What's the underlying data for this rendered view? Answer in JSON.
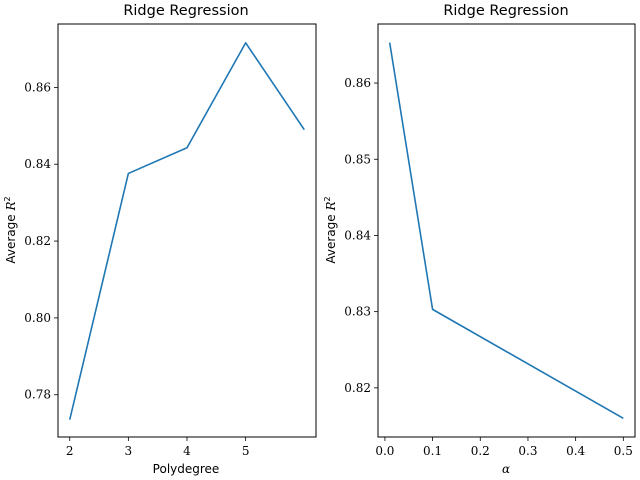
{
  "chart_data": [
    {
      "type": "line",
      "title": "Ridge Regression",
      "xlabel": "Polydegree",
      "ylabel_prefix": "Average ",
      "ylabel_symbol": "R",
      "ylabel_sup": "2",
      "x": [
        2,
        3,
        4,
        5,
        6
      ],
      "series": [
        {
          "values": [
            0.7735,
            0.8376,
            0.8443,
            0.8716,
            0.849
          ]
        }
      ],
      "xlim": [
        1.8,
        6.2
      ],
      "ylim": [
        0.769,
        0.8765
      ],
      "xticks": [
        {
          "value": 2,
          "label": "2"
        },
        {
          "value": 3,
          "label": "3"
        },
        {
          "value": 4,
          "label": "4"
        },
        {
          "value": 5,
          "label": "5"
        }
      ],
      "yticks": [
        {
          "value": 0.78,
          "label": "0.78"
        },
        {
          "value": 0.8,
          "label": "0.80"
        },
        {
          "value": 0.82,
          "label": "0.82"
        },
        {
          "value": 0.84,
          "label": "0.84"
        },
        {
          "value": 0.86,
          "label": "0.86"
        }
      ],
      "grid": false,
      "legend": "none"
    },
    {
      "type": "line",
      "title": "Ridge Regression",
      "xlabel": "α",
      "ylabel_prefix": "Average ",
      "ylabel_symbol": "R",
      "ylabel_sup": "2",
      "x": [
        0.01,
        0.1,
        0.5
      ],
      "series": [
        {
          "values": [
            0.8653,
            0.8303,
            0.816
          ]
        }
      ],
      "xlim": [
        -0.0145,
        0.5245
      ],
      "ylim": [
        0.81355,
        0.86775
      ],
      "xticks": [
        {
          "value": 0.0,
          "label": "0.0"
        },
        {
          "value": 0.1,
          "label": "0.1"
        },
        {
          "value": 0.2,
          "label": "0.2"
        },
        {
          "value": 0.3,
          "label": "0.3"
        },
        {
          "value": 0.4,
          "label": "0.4"
        },
        {
          "value": 0.5,
          "label": "0.5"
        }
      ],
      "yticks": [
        {
          "value": 0.82,
          "label": "0.82"
        },
        {
          "value": 0.83,
          "label": "0.83"
        },
        {
          "value": 0.84,
          "label": "0.84"
        },
        {
          "value": 0.85,
          "label": "0.85"
        },
        {
          "value": 0.86,
          "label": "0.86"
        }
      ],
      "grid": false,
      "legend": "none"
    }
  ]
}
